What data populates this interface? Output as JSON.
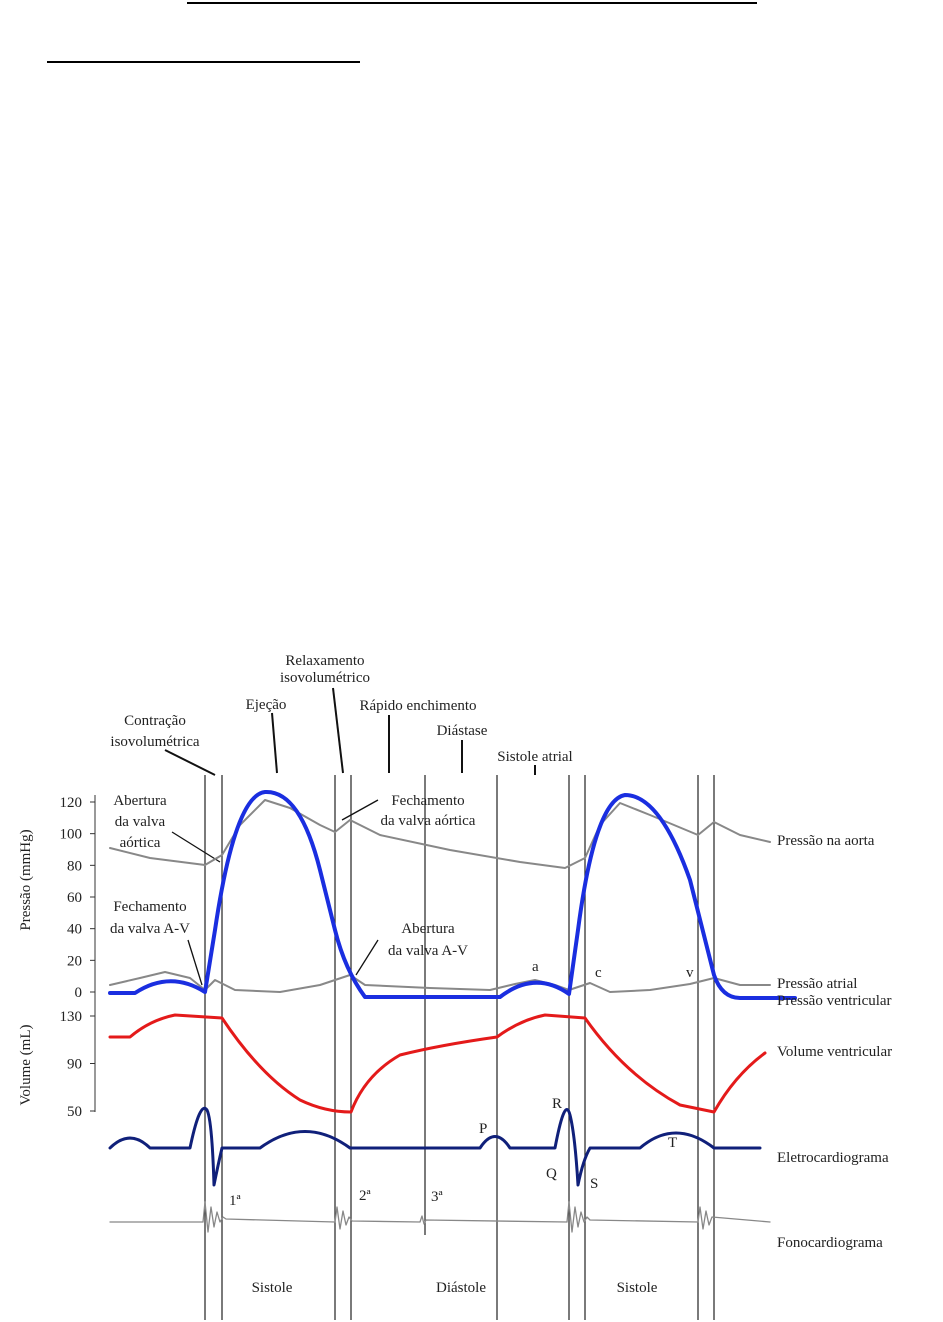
{
  "figure": {
    "top_labels": {
      "contraction": [
        "Contração",
        "isovolumétrica"
      ],
      "ejection": "Ejeção",
      "relaxation": [
        "Relaxamento",
        "isovolumétrico"
      ],
      "rapid_filling": "Rápido enchimento",
      "diastasis": "Diástase",
      "atrial_systole": "Sistole atrial"
    },
    "annotations": {
      "aortic_opening": [
        "Abertura",
        "da valva",
        "aórtica"
      ],
      "aortic_closing": [
        "Fechamento",
        "da valva aórtica"
      ],
      "av_closing": [
        "Fechamento",
        "da valva A-V"
      ],
      "av_opening": [
        "Abertura",
        "da valva A-V"
      ]
    },
    "pressure_axis": {
      "label": "Pressão (mmHg)",
      "ticks": [
        120,
        100,
        80,
        60,
        40,
        20,
        0
      ]
    },
    "volume_axis": {
      "label": "Volume (mL)",
      "ticks": [
        130,
        90,
        50
      ]
    },
    "curve_labels": {
      "aorta": "Pressão na aorta",
      "atrial": "Pressão atrial",
      "ventricular": "Pressão ventricular",
      "volume": "Volume ventricular",
      "ecg": "Eletrocardiograma",
      "phono": "Fonocardiograma"
    },
    "waves": {
      "a": "a",
      "c": "c",
      "v": "v",
      "P": "P",
      "R": "R",
      "Q": "Q",
      "S": "S",
      "T": "T"
    },
    "sounds": [
      "1ª",
      "2ª",
      "3ª"
    ],
    "phases": [
      "Sistole",
      "Diástole",
      "Sistole"
    ]
  }
}
